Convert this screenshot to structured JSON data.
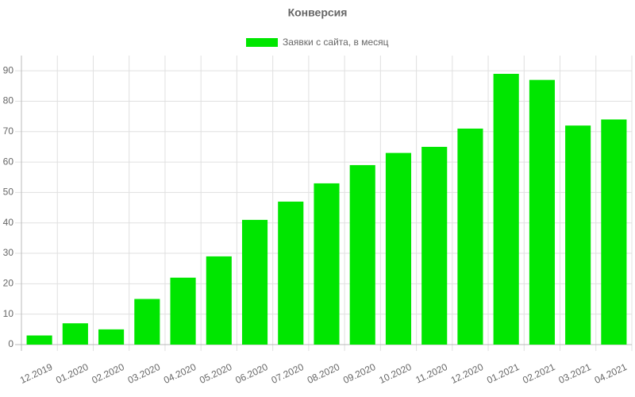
{
  "chart_data": {
    "type": "bar",
    "title": "Конверсия",
    "categories": [
      "12.2019",
      "01.2020",
      "02.2020",
      "03.2020",
      "04.2020",
      "05.2020",
      "06.2020",
      "07.2020",
      "08.2020",
      "09.2020",
      "10.2020",
      "11.2020",
      "12.2020",
      "01.2021",
      "02.2021",
      "03.2021",
      "04.2021"
    ],
    "series": [
      {
        "name": "Заявки с сайта, в месяц",
        "color": "#00e600",
        "values": [
          3,
          7,
          5,
          15,
          22,
          29,
          41,
          47,
          53,
          59,
          63,
          65,
          71,
          89,
          87,
          72,
          74
        ]
      }
    ],
    "ylim": [
      0,
      95
    ],
    "yticks": [
      0,
      10,
      20,
      30,
      40,
      50,
      60,
      70,
      80,
      90
    ],
    "grid": true,
    "legend": "top"
  }
}
